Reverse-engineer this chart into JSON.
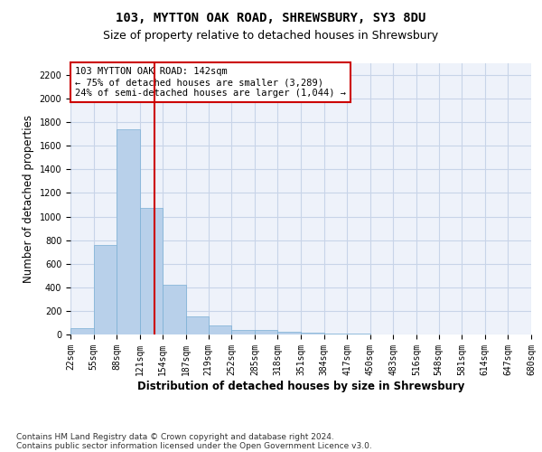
{
  "title1": "103, MYTTON OAK ROAD, SHREWSBURY, SY3 8DU",
  "title2": "Size of property relative to detached houses in Shrewsbury",
  "xlabel": "Distribution of detached houses by size in Shrewsbury",
  "ylabel": "Number of detached properties",
  "footnote1": "Contains HM Land Registry data © Crown copyright and database right 2024.",
  "footnote2": "Contains public sector information licensed under the Open Government Licence v3.0.",
  "annotation_title": "103 MYTTON OAK ROAD: 142sqm",
  "annotation_line1": "← 75% of detached houses are smaller (3,289)",
  "annotation_line2": "24% of semi-detached houses are larger (1,044) →",
  "bin_edges": [
    22,
    55,
    88,
    121,
    154,
    187,
    219,
    252,
    285,
    318,
    351,
    384,
    417,
    450,
    483,
    516,
    548,
    581,
    614,
    647,
    680
  ],
  "bar_heights": [
    55,
    760,
    1740,
    1070,
    420,
    155,
    80,
    40,
    35,
    25,
    15,
    10,
    5,
    2,
    1,
    1,
    0,
    0,
    0,
    0
  ],
  "bar_color": "#b8d0ea",
  "bar_edge_color": "#7aafd4",
  "redline_x": 142,
  "ylim": [
    0,
    2300
  ],
  "yticks": [
    0,
    200,
    400,
    600,
    800,
    1000,
    1200,
    1400,
    1600,
    1800,
    2000,
    2200
  ],
  "grid_color": "#c8d4e8",
  "background_color": "#eef2fa",
  "annotation_box_color": "#ffffff",
  "annotation_box_edge": "#cc0000",
  "redline_color": "#cc0000",
  "title1_fontsize": 10,
  "title2_fontsize": 9,
  "axis_label_fontsize": 8.5,
  "tick_fontsize": 7,
  "annotation_fontsize": 7.5,
  "footnote_fontsize": 6.5
}
